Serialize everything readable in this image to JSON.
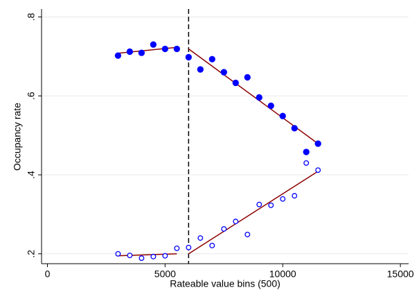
{
  "chart_data": {
    "type": "scatter",
    "x_label": "Rateable value bins (500)",
    "y_label": "Occupancy rate",
    "x": [
      3000,
      3500,
      4000,
      4500,
      5000,
      5500,
      6000,
      6500,
      7000,
      7500,
      8000,
      8500,
      9000,
      9500,
      10000,
      10500,
      11000,
      11500
    ],
    "series": [
      {
        "color": "#0000ff",
        "marker": "filled",
        "values": [
          0.702,
          0.712,
          0.709,
          0.73,
          0.719,
          0.719,
          0.698,
          0.667,
          0.693,
          0.66,
          0.633,
          0.647,
          0.596,
          0.575,
          0.549,
          0.518,
          0.458,
          0.479
        ]
      },
      {
        "color": "#0000ff",
        "marker": "hollow",
        "values": [
          0.2,
          0.196,
          0.189,
          0.193,
          0.195,
          0.214,
          0.216,
          0.24,
          0.221,
          0.263,
          0.282,
          0.249,
          0.325,
          0.323,
          0.339,
          0.347,
          0.43,
          0.412
        ]
      }
    ],
    "fit_lines": [
      {
        "color": "#8b0000",
        "x": [
          3000,
          5500
        ],
        "values": [
          0.708,
          0.723
        ]
      },
      {
        "color": "#8b0000",
        "x": [
          6000,
          11500
        ],
        "values": [
          0.719,
          0.479
        ]
      },
      {
        "color": "#8b0000",
        "x": [
          3000,
          5500
        ],
        "values": [
          0.195,
          0.2
        ]
      },
      {
        "color": "#8b0000",
        "x": [
          6000,
          11500
        ],
        "values": [
          0.2,
          0.409
        ]
      }
    ],
    "cutoff": 6000,
    "xlim": [
      -250,
      15350
    ],
    "ylim": [
      0.175,
      0.82
    ],
    "xticks": [
      0,
      5000,
      10000,
      15000
    ],
    "yticks": [
      {
        "value": 0.2,
        "label": ".2"
      },
      {
        "value": 0.4,
        "label": ".4"
      },
      {
        "value": 0.6,
        "label": ".6"
      },
      {
        "value": 0.8,
        "label": ".8"
      }
    ],
    "grid": true
  }
}
